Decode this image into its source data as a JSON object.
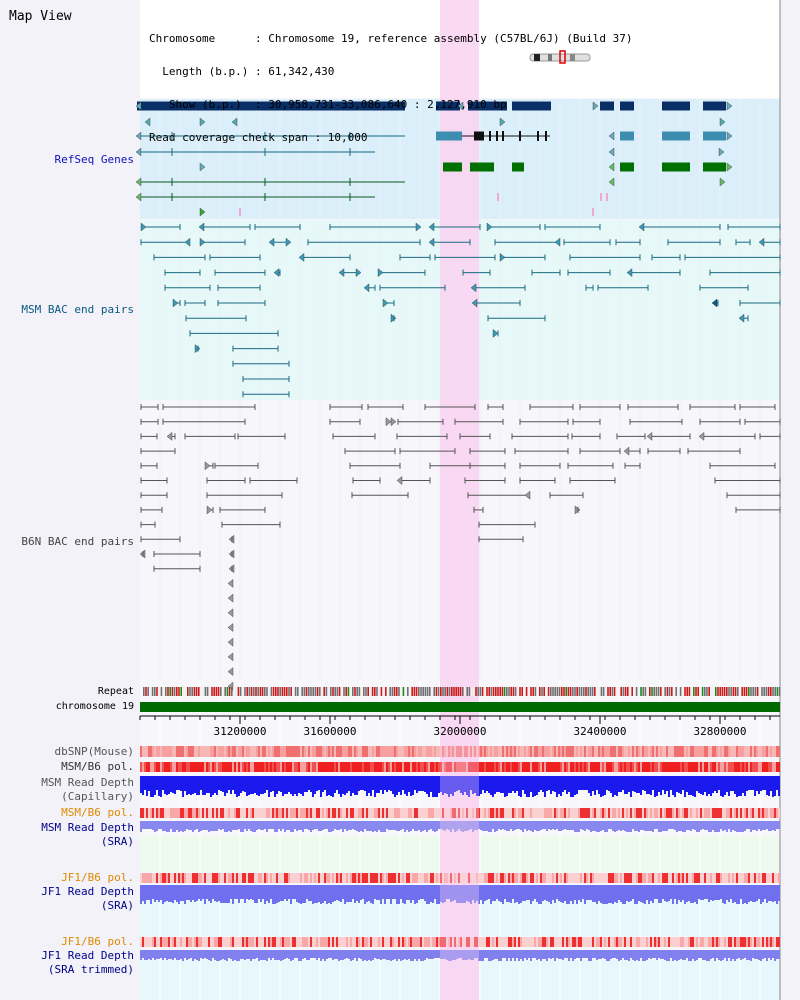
{
  "header": {
    "title": "Map View",
    "info_lines": [
      "Chromosome      : Chromosome 19, reference assembly (C57BL/6J) (Build 37)",
      "  Length (b.p.) : 61,342,430",
      "   Show (b.p.)  : 30,958,731-33,086,640 : 2,127,910 bp",
      "Read coverage check span : 10,000"
    ]
  },
  "tracks": {
    "refseq": "RefSeq Genes",
    "msm_bac": "MSM BAC end pairs",
    "b6n_bac": "B6N BAC end pairs",
    "repeat": "Repeat",
    "chromosome": "chromosome 19",
    "dbsnp": "dbSNP(Mouse)",
    "msm_b6_pol_1": "MSM/B6 pol.",
    "msm_depth_cap_1": "MSM Read Depth",
    "msm_depth_cap_2": "(Capillary)",
    "msm_b6_pol_2": "MSM/B6 pol.",
    "msm_depth_sra_1": "MSM Read Depth",
    "msm_depth_sra_2": "(SRA)",
    "jf1_b6_pol_1": "JF1/B6 pol.",
    "jf1_depth_sra_1": "JF1 Read Depth",
    "jf1_depth_sra_2": "(SRA)",
    "jf1_b6_pol_2": "JF1/B6 pol.",
    "jf1_depth_trim_1": "JF1 Read Depth",
    "jf1_depth_trim_2": "(SRA trimmed)"
  },
  "axis": {
    "ticks": [
      "31200000",
      "31600000",
      "32000000",
      "32400000",
      "32800000"
    ]
  },
  "colors": {
    "refseq_bg": "#dbeffa",
    "msm_bac_bg": "#e6f8f8",
    "highlight": "#f9d5f2",
    "refseq_dark": "#0a2f66",
    "refseq_mid": "#3d8db0",
    "refseq_green": "#007000",
    "msm_line": "#1a6a80",
    "b6n_line": "#555555",
    "chrom_bar": "#006a00",
    "depth_blue": "#1a1aee",
    "depth_light": "#8888ee",
    "msm_label": "#0a5a80",
    "pol_label": "#e08a00",
    "depth_label": "#00008b"
  }
}
